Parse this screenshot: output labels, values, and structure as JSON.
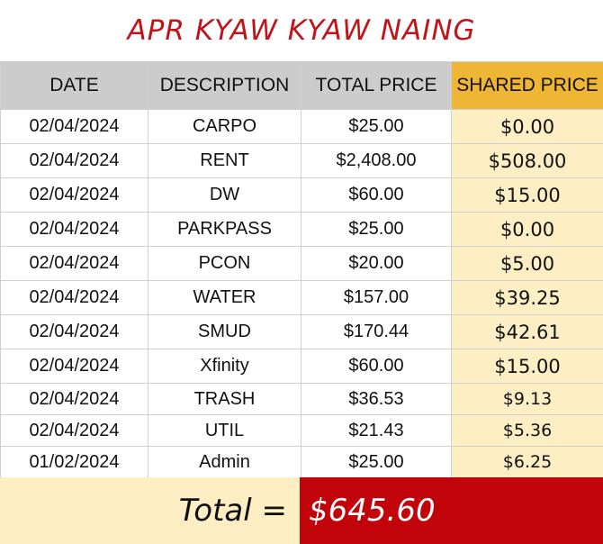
{
  "title": "APR KYAW KYAW NAING",
  "headers": [
    "DATE",
    "DESCRIPTION",
    "TOTAL PRICE",
    "SHARED PRICE"
  ],
  "rows": [
    [
      "02/04/2024",
      "CARPO",
      "$25.00",
      "$0.00"
    ],
    [
      "02/04/2024",
      "RENT",
      "$2,408.00",
      "$508.00"
    ],
    [
      "02/04/2024",
      "DW",
      "$60.00",
      "$15.00"
    ],
    [
      "02/04/2024",
      "PARKPASS",
      "$25.00",
      "$0.00"
    ],
    [
      "02/04/2024",
      "PCON",
      "$20.00",
      "$5.00"
    ],
    [
      "02/04/2024",
      "WATER",
      "$157.00",
      "$39.25"
    ],
    [
      "02/04/2024",
      "SMUD",
      "$170.44",
      "$42.61"
    ],
    [
      "02/04/2024",
      "Xfinity",
      "$60.00",
      "$15.00"
    ],
    [
      "02/04/2024",
      "TRASH",
      "$36.53",
      "$9.13"
    ],
    [
      "02/04/2024",
      "UTIL",
      "$21.43",
      "$5.36"
    ],
    [
      "01/02/2024",
      "Admin",
      "$25.00",
      "$6.25"
    ]
  ],
  "total": {
    "label": "Total =",
    "value": "$645.60"
  },
  "colors": {
    "title": "#c0141b",
    "header": "#cccccc",
    "shared_header": "#efb534",
    "shared_cell": "#fdeec4",
    "total_value_bg": "#c1040a"
  }
}
